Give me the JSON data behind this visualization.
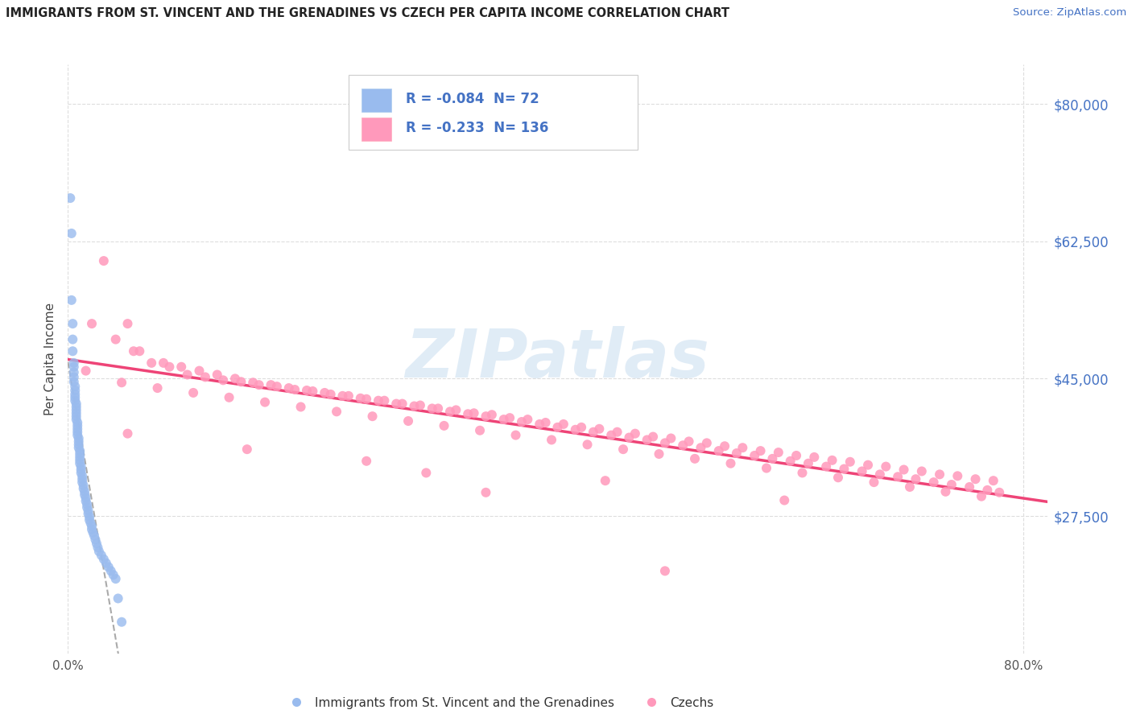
{
  "title": "IMMIGRANTS FROM ST. VINCENT AND THE GRENADINES VS CZECH PER CAPITA INCOME CORRELATION CHART",
  "source": "Source: ZipAtlas.com",
  "ylabel": "Per Capita Income",
  "xtick_left": "0.0%",
  "xtick_right": "80.0%",
  "ytick_labels": [
    "$27,500",
    "$45,000",
    "$62,500",
    "$80,000"
  ],
  "ytick_values": [
    27500,
    45000,
    62500,
    80000
  ],
  "ylim": [
    10000,
    85000
  ],
  "xlim": [
    0.0,
    0.82
  ],
  "legend_blue_label": "Immigrants from St. Vincent and the Grenadines",
  "legend_pink_label": "Czechs",
  "blue_R": "-0.084",
  "blue_N": "72",
  "pink_R": "-0.233",
  "pink_N": "136",
  "blue_color": "#99BBEE",
  "pink_color": "#FF99BB",
  "trend_pink_color": "#EE4477",
  "trend_blue_color": "#AAAAAA",
  "watermark_color": "#C8DDF0",
  "title_color": "#222222",
  "source_color": "#4472C4",
  "ytick_color": "#4472C4",
  "grid_color": "#DDDDDD",
  "background_color": "#FFFFFF",
  "legend_text_color": "#4472C4",
  "blue_scatter_x": [
    0.002,
    0.003,
    0.003,
    0.004,
    0.004,
    0.004,
    0.005,
    0.005,
    0.005,
    0.005,
    0.005,
    0.006,
    0.006,
    0.006,
    0.006,
    0.006,
    0.007,
    0.007,
    0.007,
    0.007,
    0.007,
    0.007,
    0.008,
    0.008,
    0.008,
    0.008,
    0.008,
    0.009,
    0.009,
    0.009,
    0.009,
    0.01,
    0.01,
    0.01,
    0.01,
    0.01,
    0.011,
    0.011,
    0.011,
    0.012,
    0.012,
    0.012,
    0.013,
    0.013,
    0.014,
    0.014,
    0.015,
    0.015,
    0.016,
    0.016,
    0.017,
    0.017,
    0.018,
    0.018,
    0.019,
    0.02,
    0.02,
    0.021,
    0.022,
    0.023,
    0.024,
    0.025,
    0.026,
    0.028,
    0.03,
    0.032,
    0.034,
    0.036,
    0.038,
    0.04,
    0.042,
    0.045
  ],
  "blue_scatter_y": [
    68000,
    63500,
    55000,
    52000,
    50000,
    48500,
    47000,
    46500,
    45800,
    45200,
    44600,
    44000,
    43500,
    43000,
    42600,
    42200,
    41800,
    41400,
    41000,
    40600,
    40200,
    39800,
    39400,
    39000,
    38600,
    38200,
    37800,
    37400,
    37000,
    36600,
    36200,
    35800,
    35400,
    35000,
    34600,
    34200,
    33800,
    33400,
    33000,
    32600,
    32200,
    31800,
    31400,
    31000,
    30600,
    30200,
    29800,
    29400,
    29000,
    28600,
    28200,
    27800,
    27400,
    27000,
    26600,
    26200,
    25800,
    25400,
    25000,
    24500,
    24000,
    23500,
    23000,
    22500,
    22000,
    21500,
    21000,
    20500,
    20000,
    19500,
    17000,
    14000
  ],
  "pink_scatter_x": [
    0.02,
    0.03,
    0.05,
    0.06,
    0.08,
    0.095,
    0.11,
    0.125,
    0.14,
    0.155,
    0.17,
    0.185,
    0.2,
    0.215,
    0.23,
    0.245,
    0.26,
    0.275,
    0.29,
    0.305,
    0.32,
    0.335,
    0.35,
    0.365,
    0.38,
    0.395,
    0.41,
    0.425,
    0.44,
    0.455,
    0.47,
    0.485,
    0.5,
    0.515,
    0.53,
    0.545,
    0.56,
    0.575,
    0.59,
    0.605,
    0.62,
    0.635,
    0.65,
    0.665,
    0.68,
    0.695,
    0.71,
    0.725,
    0.74,
    0.755,
    0.77,
    0.78,
    0.04,
    0.07,
    0.1,
    0.13,
    0.16,
    0.19,
    0.22,
    0.25,
    0.28,
    0.31,
    0.34,
    0.37,
    0.4,
    0.43,
    0.46,
    0.49,
    0.52,
    0.55,
    0.58,
    0.61,
    0.64,
    0.67,
    0.7,
    0.73,
    0.76,
    0.055,
    0.085,
    0.115,
    0.145,
    0.175,
    0.205,
    0.235,
    0.265,
    0.295,
    0.325,
    0.355,
    0.385,
    0.415,
    0.445,
    0.475,
    0.505,
    0.535,
    0.565,
    0.595,
    0.625,
    0.655,
    0.685,
    0.715,
    0.745,
    0.775,
    0.015,
    0.045,
    0.075,
    0.105,
    0.135,
    0.165,
    0.195,
    0.225,
    0.255,
    0.285,
    0.315,
    0.345,
    0.375,
    0.405,
    0.435,
    0.465,
    0.495,
    0.525,
    0.555,
    0.585,
    0.615,
    0.645,
    0.675,
    0.705,
    0.735,
    0.765,
    0.5,
    0.3,
    0.6,
    0.45,
    0.35,
    0.25,
    0.15,
    0.05
  ],
  "pink_scatter_y": [
    52000,
    60000,
    52000,
    48500,
    47000,
    46500,
    46000,
    45500,
    45000,
    44500,
    44200,
    43800,
    43500,
    43200,
    42800,
    42500,
    42200,
    41800,
    41500,
    41200,
    40800,
    40500,
    40200,
    39800,
    39500,
    39200,
    38800,
    38500,
    38200,
    37800,
    37500,
    37200,
    36800,
    36500,
    36200,
    35800,
    35500,
    35200,
    34800,
    34500,
    34200,
    33800,
    33500,
    33200,
    32800,
    32500,
    32200,
    31800,
    31500,
    31200,
    30800,
    30500,
    50000,
    47000,
    45500,
    44800,
    44200,
    43600,
    43000,
    42400,
    41800,
    41200,
    40600,
    40000,
    39400,
    38800,
    38200,
    37600,
    37000,
    36400,
    35800,
    35200,
    34600,
    34000,
    33400,
    32800,
    32200,
    48500,
    46500,
    45200,
    44600,
    44000,
    43400,
    42800,
    42200,
    41600,
    41000,
    40400,
    39800,
    39200,
    38600,
    38000,
    37400,
    36800,
    36200,
    35600,
    35000,
    34400,
    33800,
    33200,
    32600,
    32000,
    46000,
    44500,
    43800,
    43200,
    42600,
    42000,
    41400,
    40800,
    40200,
    39600,
    39000,
    38400,
    37800,
    37200,
    36600,
    36000,
    35400,
    34800,
    34200,
    33600,
    33000,
    32400,
    31800,
    31200,
    30600,
    30000,
    20500,
    33000,
    29500,
    32000,
    30500,
    34500,
    36000,
    38000
  ]
}
